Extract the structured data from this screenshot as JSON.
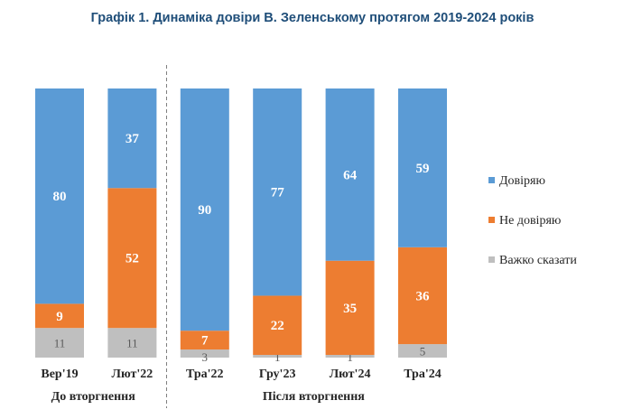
{
  "chart_data": {
    "type": "bar",
    "stacked": true,
    "normalized": true,
    "title": "Графік 1. Динаміка довіри В. Зеленському протягом 2019-2024 років",
    "categories": [
      "Вер'19",
      "Лют'22",
      "Тра'22",
      "Гру'23",
      "Лют'24",
      "Тра'24"
    ],
    "series": [
      {
        "name": "Довіряю",
        "color": "#5b9bd5",
        "values": [
          80,
          37,
          90,
          77,
          64,
          59
        ]
      },
      {
        "name": "Не довіряю",
        "color": "#ed7d31",
        "values": [
          9,
          52,
          7,
          22,
          35,
          36
        ]
      },
      {
        "name": "Важко сказати",
        "color": "#bfbfbf",
        "values": [
          11,
          11,
          3,
          1,
          1,
          5
        ]
      }
    ],
    "groups": [
      {
        "label": "До вторгнення",
        "categories": [
          0,
          1
        ]
      },
      {
        "label": "Після вторгнення",
        "categories": [
          2,
          3,
          4,
          5
        ]
      }
    ],
    "legend_position": "right",
    "grid": false
  }
}
